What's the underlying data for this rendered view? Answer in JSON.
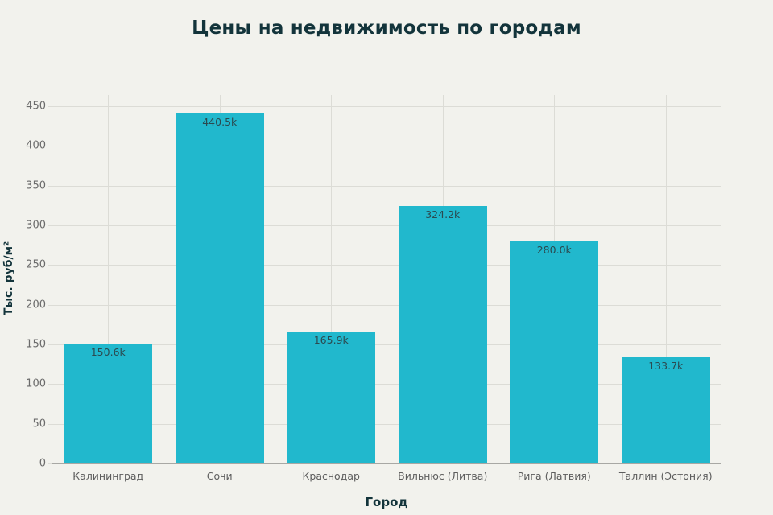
{
  "chart_data": {
    "type": "bar",
    "title": "Цены на недвижимость по городам",
    "xlabel": "Город",
    "ylabel": "Тыс. руб/м²",
    "categories": [
      "Калининград",
      "Сочи",
      "Краснодар",
      "Вильнюс (Литва)",
      "Рига (Латвия)",
      "Таллин (Эстония)"
    ],
    "values": [
      150.6,
      440.5,
      165.9,
      324.2,
      280.0,
      133.7
    ],
    "value_labels": [
      "150.6k",
      "440.5k",
      "165.9k",
      "324.2k",
      "280.0k",
      "133.7k"
    ],
    "ylim": [
      0,
      465
    ],
    "yticks": [
      0,
      50,
      100,
      150,
      200,
      250,
      300,
      350,
      400,
      450
    ],
    "grid": true,
    "legend": null,
    "bar_color": "#21b8cd"
  }
}
